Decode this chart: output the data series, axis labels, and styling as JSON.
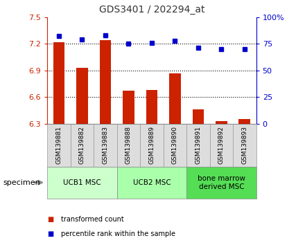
{
  "title": "GDS3401 / 202294_at",
  "samples": [
    "GSM139881",
    "GSM139882",
    "GSM139883",
    "GSM139888",
    "GSM139889",
    "GSM139890",
    "GSM139891",
    "GSM139892",
    "GSM139893"
  ],
  "bar_values": [
    7.22,
    6.93,
    7.24,
    6.67,
    6.68,
    6.87,
    6.46,
    6.33,
    6.35
  ],
  "dot_values": [
    82,
    79,
    83,
    75,
    76,
    78,
    71,
    70,
    70
  ],
  "ylim_left": [
    6.3,
    7.5
  ],
  "ylim_right": [
    0,
    100
  ],
  "yticks_left": [
    6.3,
    6.6,
    6.9,
    7.2,
    7.5
  ],
  "yticks_right": [
    0,
    25,
    50,
    75,
    100
  ],
  "ytick_labels_left": [
    "6.3",
    "6.6",
    "6.9",
    "7.2",
    "7.5"
  ],
  "ytick_labels_right": [
    "0",
    "25",
    "50",
    "75",
    "100%"
  ],
  "hlines": [
    6.6,
    6.9,
    7.2
  ],
  "bar_color": "#cc2200",
  "dot_color": "#0000cc",
  "groups": [
    {
      "label": "UCB1 MSC",
      "start": 0,
      "end": 3,
      "color": "#ccffcc"
    },
    {
      "label": "UCB2 MSC",
      "start": 3,
      "end": 6,
      "color": "#aaffaa"
    },
    {
      "label": "bone marrow\nderived MSC",
      "start": 6,
      "end": 9,
      "color": "#55dd55"
    }
  ],
  "specimen_label": "specimen",
  "legend_bar_label": "transformed count",
  "legend_dot_label": "percentile rank within the sample",
  "title_color": "#333333",
  "left_axis_color": "#cc2200",
  "right_axis_color": "#0000cc",
  "bar_bottom": 6.3,
  "bg_color": "#ffffff"
}
